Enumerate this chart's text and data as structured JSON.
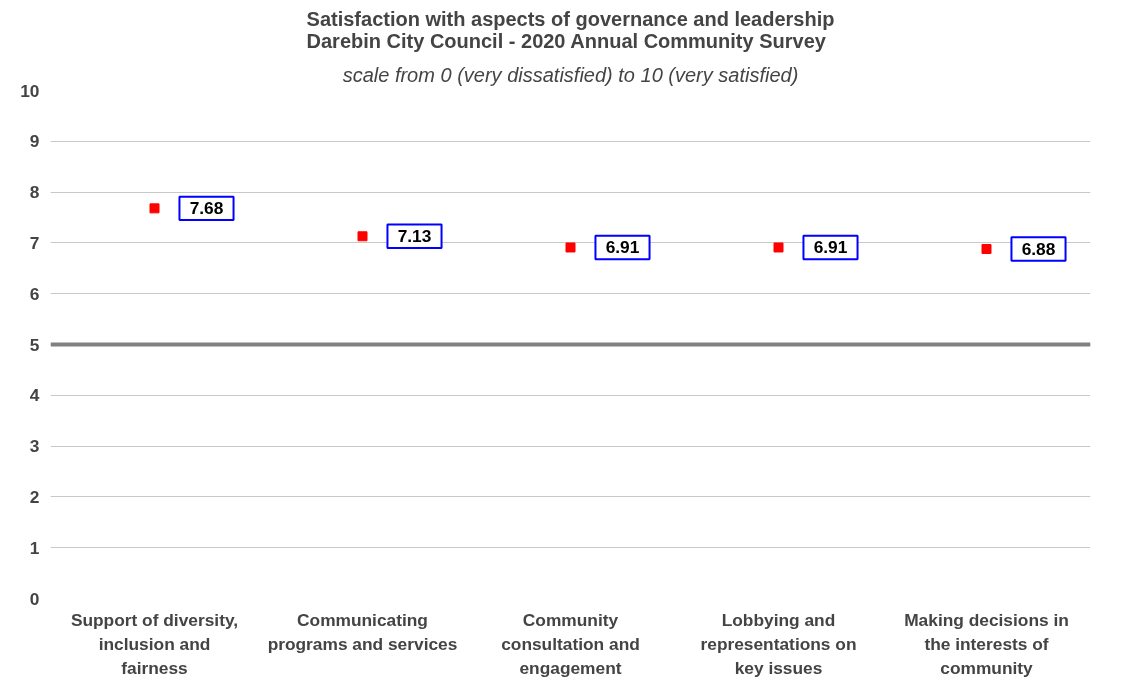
{
  "chart_data": {
    "type": "scatter",
    "title": "Satisfaction with aspects of governance and leadership\nDarebin City Council - 2020 Annual Community Survey",
    "subtitle": "scale from 0 (very dissatisfied) to 10 (very satisfied)",
    "categories": [
      "Support of diversity, inclusion and fairness",
      "Communicating programs and services",
      "Community consultation and engagement",
      "Lobbying and representations on key issues",
      "Making decisions in the interests of community"
    ],
    "values": [
      7.68,
      7.13,
      6.91,
      6.91,
      6.88
    ],
    "color": "#ff0000",
    "marker": "square",
    "data_labels": true,
    "ylim": [
      0,
      10
    ],
    "yticks": [
      0,
      1,
      2,
      3,
      4,
      5,
      6,
      7,
      8,
      9,
      10
    ],
    "grid": "y",
    "ref_lines": [
      {
        "axis": "y",
        "value": 5,
        "color": "#808080"
      }
    ]
  }
}
